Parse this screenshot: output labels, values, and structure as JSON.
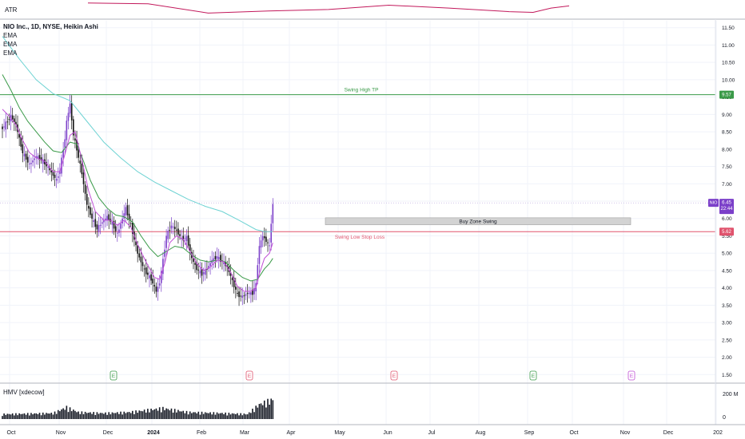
{
  "header": {
    "symbol_line": "NIO Inc., 1D, NYSE, Heikin Ashi",
    "indicators": [
      "EMA",
      "EMA",
      "EMA"
    ],
    "atr_label": "ATR",
    "volume_label": "HMV [xdecow]"
  },
  "price_scale": {
    "ticks": [
      "11.50",
      "11.00",
      "10.50",
      "10.00",
      "9.50",
      "9.00",
      "8.50",
      "8.00",
      "7.50",
      "7.00",
      "6.50",
      "6.00",
      "5.50",
      "5.00",
      "4.50",
      "4.00",
      "3.50",
      "3.00",
      "2.50",
      "2.00",
      "1.50"
    ],
    "current_symbol": "NIO",
    "current_price": "6.45",
    "current_countdown": "22:44",
    "tp_tag": "9.57",
    "sl_tag": "5.62"
  },
  "volume_scale": {
    "ticks": [
      "200 M",
      "0"
    ]
  },
  "time_axis": {
    "labels": [
      "Oct",
      "Nov",
      "Dec",
      "2024",
      "Feb",
      "Mar",
      "Apr",
      "May",
      "Jun",
      "Jul",
      "Aug",
      "Sep",
      "Oct",
      "Nov",
      "Dec",
      "202"
    ]
  },
  "annotations": {
    "swing_high": "Swing High TP",
    "buy_zone": "Buy Zone Swing",
    "stop_loss": "Swing Low Stop Loss",
    "earnings_marker": "E"
  },
  "colors": {
    "up": "#7b3fc9",
    "down": "#111111",
    "ema_fast": "#c04fd6",
    "ema_mid": "#3a9a48",
    "ema_slow": "#6fd3d3",
    "tp_line": "#3a9a48",
    "sl_line": "#e0536d",
    "atr_line": "#c2185b",
    "zone_fill": "#d3d3d3",
    "grid": "#f0f3fa"
  },
  "chart_data": {
    "type": "candlestick",
    "style": "Heikin Ashi",
    "ylim": [
      1.3,
      11.7
    ],
    "y_scale": "linear",
    "levels": {
      "swing_high_tp": 9.57,
      "buy_zone": [
        5.82,
        6.02
      ],
      "swing_low_stop_loss": 5.62,
      "current": 6.45
    },
    "close_path": [
      {
        "t": 0,
        "v": 8.6
      },
      {
        "t": 5,
        "v": 8.95
      },
      {
        "t": 8,
        "v": 8.7
      },
      {
        "t": 12,
        "v": 7.9
      },
      {
        "t": 16,
        "v": 7.55
      },
      {
        "t": 20,
        "v": 7.8
      },
      {
        "t": 24,
        "v": 7.65
      },
      {
        "t": 28,
        "v": 7.4
      },
      {
        "t": 32,
        "v": 7.1
      },
      {
        "t": 34,
        "v": 7.4
      },
      {
        "t": 37,
        "v": 8.3
      },
      {
        "t": 38,
        "v": 8.8
      },
      {
        "t": 40,
        "v": 9.3
      },
      {
        "t": 42,
        "v": 8.4
      },
      {
        "t": 44,
        "v": 8.0
      },
      {
        "t": 47,
        "v": 7.3
      },
      {
        "t": 50,
        "v": 6.4
      },
      {
        "t": 53,
        "v": 6.0
      },
      {
        "t": 56,
        "v": 5.7
      },
      {
        "t": 59,
        "v": 5.9
      },
      {
        "t": 62,
        "v": 6.05
      },
      {
        "t": 65,
        "v": 5.85
      },
      {
        "t": 68,
        "v": 5.55
      },
      {
        "t": 71,
        "v": 6.0
      },
      {
        "t": 73,
        "v": 6.3
      },
      {
        "t": 76,
        "v": 5.8
      },
      {
        "t": 80,
        "v": 5.0
      },
      {
        "t": 84,
        "v": 4.5
      },
      {
        "t": 88,
        "v": 4.25
      },
      {
        "t": 91,
        "v": 3.9
      },
      {
        "t": 93,
        "v": 4.15
      },
      {
        "t": 95,
        "v": 4.8
      },
      {
        "t": 97,
        "v": 5.5
      },
      {
        "t": 100,
        "v": 5.8
      },
      {
        "t": 103,
        "v": 5.65
      },
      {
        "t": 106,
        "v": 5.4
      },
      {
        "t": 109,
        "v": 5.45
      },
      {
        "t": 112,
        "v": 4.85
      },
      {
        "t": 115,
        "v": 4.55
      },
      {
        "t": 118,
        "v": 4.4
      },
      {
        "t": 121,
        "v": 4.55
      },
      {
        "t": 124,
        "v": 4.8
      },
      {
        "t": 127,
        "v": 4.9
      },
      {
        "t": 130,
        "v": 4.75
      },
      {
        "t": 133,
        "v": 4.6
      },
      {
        "t": 136,
        "v": 4.2
      },
      {
        "t": 139,
        "v": 3.8
      },
      {
        "t": 142,
        "v": 3.75
      },
      {
        "t": 145,
        "v": 3.85
      },
      {
        "t": 148,
        "v": 3.85
      },
      {
        "t": 150,
        "v": 4.1
      },
      {
        "t": 151,
        "v": 4.7
      },
      {
        "t": 152,
        "v": 5.2
      },
      {
        "t": 154,
        "v": 5.5
      },
      {
        "t": 156,
        "v": 5.35
      },
      {
        "t": 158,
        "v": 5.2
      },
      {
        "t": 159,
        "v": 5.9
      },
      {
        "t": 160,
        "v": 6.4
      }
    ],
    "ema_fast": [
      {
        "t": 0,
        "v": 9.15
      },
      {
        "t": 4,
        "v": 8.95
      },
      {
        "t": 8,
        "v": 8.7
      },
      {
        "t": 12,
        "v": 8.25
      },
      {
        "t": 16,
        "v": 7.9
      },
      {
        "t": 20,
        "v": 7.75
      },
      {
        "t": 25,
        "v": 7.65
      },
      {
        "t": 30,
        "v": 7.35
      },
      {
        "t": 34,
        "v": 7.35
      },
      {
        "t": 37,
        "v": 7.85
      },
      {
        "t": 40,
        "v": 8.4
      },
      {
        "t": 43,
        "v": 8.5
      },
      {
        "t": 47,
        "v": 7.7
      },
      {
        "t": 51,
        "v": 6.8
      },
      {
        "t": 55,
        "v": 6.2
      },
      {
        "t": 60,
        "v": 5.95
      },
      {
        "t": 64,
        "v": 5.95
      },
      {
        "t": 68,
        "v": 5.8
      },
      {
        "t": 72,
        "v": 5.95
      },
      {
        "t": 76,
        "v": 5.75
      },
      {
        "t": 80,
        "v": 5.25
      },
      {
        "t": 85,
        "v": 4.75
      },
      {
        "t": 90,
        "v": 4.3
      },
      {
        "t": 93,
        "v": 4.25
      },
      {
        "t": 96,
        "v": 4.7
      },
      {
        "t": 99,
        "v": 5.3
      },
      {
        "t": 103,
        "v": 5.5
      },
      {
        "t": 107,
        "v": 5.4
      },
      {
        "t": 111,
        "v": 5.05
      },
      {
        "t": 115,
        "v": 4.7
      },
      {
        "t": 119,
        "v": 4.5
      },
      {
        "t": 123,
        "v": 4.6
      },
      {
        "t": 127,
        "v": 4.8
      },
      {
        "t": 131,
        "v": 4.75
      },
      {
        "t": 135,
        "v": 4.45
      },
      {
        "t": 139,
        "v": 4.05
      },
      {
        "t": 143,
        "v": 3.9
      },
      {
        "t": 147,
        "v": 3.9
      },
      {
        "t": 150,
        "v": 4.0
      },
      {
        "t": 152,
        "v": 4.4
      },
      {
        "t": 155,
        "v": 4.85
      },
      {
        "t": 158,
        "v": 5.0
      },
      {
        "t": 160,
        "v": 5.3
      }
    ],
    "ema_mid": [
      {
        "t": 0,
        "v": 10.15
      },
      {
        "t": 5,
        "v": 9.7
      },
      {
        "t": 10,
        "v": 9.2
      },
      {
        "t": 15,
        "v": 8.8
      },
      {
        "t": 20,
        "v": 8.5
      },
      {
        "t": 25,
        "v": 8.2
      },
      {
        "t": 30,
        "v": 7.95
      },
      {
        "t": 35,
        "v": 7.9
      },
      {
        "t": 40,
        "v": 8.2
      },
      {
        "t": 44,
        "v": 8.15
      },
      {
        "t": 48,
        "v": 7.65
      },
      {
        "t": 52,
        "v": 7.1
      },
      {
        "t": 57,
        "v": 6.6
      },
      {
        "t": 62,
        "v": 6.3
      },
      {
        "t": 67,
        "v": 6.1
      },
      {
        "t": 72,
        "v": 6.05
      },
      {
        "t": 77,
        "v": 5.9
      },
      {
        "t": 82,
        "v": 5.5
      },
      {
        "t": 87,
        "v": 5.15
      },
      {
        "t": 92,
        "v": 4.9
      },
      {
        "t": 97,
        "v": 5.05
      },
      {
        "t": 102,
        "v": 5.2
      },
      {
        "t": 107,
        "v": 5.15
      },
      {
        "t": 112,
        "v": 4.95
      },
      {
        "t": 117,
        "v": 4.8
      },
      {
        "t": 122,
        "v": 4.75
      },
      {
        "t": 127,
        "v": 4.8
      },
      {
        "t": 132,
        "v": 4.75
      },
      {
        "t": 137,
        "v": 4.5
      },
      {
        "t": 142,
        "v": 4.3
      },
      {
        "t": 147,
        "v": 4.2
      },
      {
        "t": 151,
        "v": 4.25
      },
      {
        "t": 155,
        "v": 4.55
      },
      {
        "t": 158,
        "v": 4.7
      },
      {
        "t": 160,
        "v": 4.85
      }
    ],
    "ema_slow": [
      {
        "t": 0,
        "v": 11.25
      },
      {
        "t": 10,
        "v": 10.6
      },
      {
        "t": 20,
        "v": 10.0
      },
      {
        "t": 30,
        "v": 9.6
      },
      {
        "t": 40,
        "v": 9.4
      },
      {
        "t": 50,
        "v": 8.8
      },
      {
        "t": 60,
        "v": 8.2
      },
      {
        "t": 70,
        "v": 7.75
      },
      {
        "t": 80,
        "v": 7.35
      },
      {
        "t": 90,
        "v": 7.05
      },
      {
        "t": 100,
        "v": 6.8
      },
      {
        "t": 110,
        "v": 6.55
      },
      {
        "t": 120,
        "v": 6.35
      },
      {
        "t": 130,
        "v": 6.2
      },
      {
        "t": 140,
        "v": 5.95
      },
      {
        "t": 150,
        "v": 5.68
      },
      {
        "t": 155,
        "v": 5.62
      },
      {
        "t": 160,
        "v": 5.62
      }
    ],
    "atr": [
      {
        "t": 0,
        "v": 0.9
      },
      {
        "t": 20,
        "v": 0.85
      },
      {
        "t": 40,
        "v": 0.2
      },
      {
        "t": 60,
        "v": 0.35
      },
      {
        "t": 80,
        "v": 0.45
      },
      {
        "t": 100,
        "v": 0.75
      },
      {
        "t": 120,
        "v": 0.55
      },
      {
        "t": 140,
        "v": 0.3
      },
      {
        "t": 148,
        "v": 0.25
      },
      {
        "t": 154,
        "v": 0.55
      },
      {
        "t": 160,
        "v": 0.7
      }
    ],
    "volume_profile": [
      {
        "t": 0,
        "v": 0.25
      },
      {
        "t": 30,
        "v": 0.3
      },
      {
        "t": 38,
        "v": 0.6
      },
      {
        "t": 45,
        "v": 0.35
      },
      {
        "t": 60,
        "v": 0.3
      },
      {
        "t": 75,
        "v": 0.35
      },
      {
        "t": 95,
        "v": 0.55
      },
      {
        "t": 110,
        "v": 0.35
      },
      {
        "t": 130,
        "v": 0.3
      },
      {
        "t": 145,
        "v": 0.25
      },
      {
        "t": 152,
        "v": 0.75
      },
      {
        "t": 160,
        "v": 1.0
      }
    ],
    "earnings_days": [
      35,
      77,
      122,
      165,
      197
    ],
    "bars_drawn": 161,
    "time_span_days": 226
  }
}
